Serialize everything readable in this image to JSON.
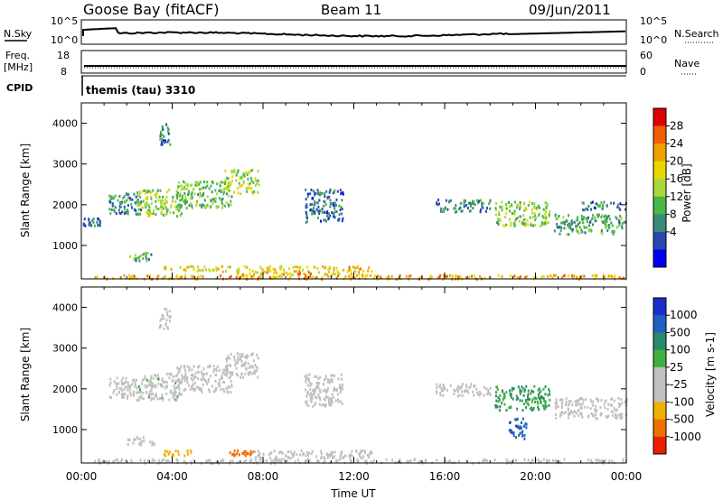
{
  "header": {
    "station": "Goose Bay (fitACF)",
    "beam": "Beam 11",
    "date": "09/Jun/2011"
  },
  "noise_panel": {
    "left_label": "N.Sky",
    "left_ticks": [
      "10^5",
      "10^0"
    ],
    "right_label": "N.Search",
    "right_ticks": [
      "10^5",
      "10^0"
    ]
  },
  "freq_panel": {
    "left_label_1": "Freq.",
    "left_label_2": "[MHz]",
    "left_ticks": [
      "18",
      "8"
    ],
    "right_label": "Nave",
    "right_ticks": [
      "60",
      "0"
    ]
  },
  "cpid_panel": {
    "label": "CPID",
    "value": "themis (tau) 3310"
  },
  "x_axis": {
    "label": "Time UT",
    "ticks": [
      "00:00",
      "04:00",
      "08:00",
      "12:00",
      "16:00",
      "20:00",
      "00:00"
    ]
  },
  "power_colorbar": {
    "label": "Power [dB]",
    "ticks": [
      "28",
      "24",
      "20",
      "16",
      "12",
      "8",
      "4"
    ],
    "colors": [
      "#e00000",
      "#f06000",
      "#f0a000",
      "#e8d800",
      "#a8d840",
      "#48b848",
      "#3a8a7a",
      "#2848b0",
      "#0000f0"
    ]
  },
  "velocity_colorbar": {
    "label": "Velocity [m s-1]",
    "ticks": [
      "1000",
      "500",
      "100",
      "25",
      "-25",
      "-100",
      "-500",
      "-1000"
    ],
    "colors": [
      "#1830c8",
      "#2060c0",
      "#2a8a6a",
      "#40b040",
      "#c0c0c0",
      "#c0c0c0",
      "#f0b000",
      "#f07000",
      "#e82000"
    ]
  },
  "chart_data": [
    {
      "type": "heatmap",
      "title": "Power",
      "ylabel": "Slant Range [km]",
      "yticks": [
        "1000",
        "2000",
        "3000",
        "4000"
      ],
      "xlim": [
        0,
        24
      ],
      "ylim": [
        180,
        4500
      ],
      "regions": [
        {
          "t": [
            1.2,
            2.6
          ],
          "r": [
            1800,
            2300
          ],
          "level": 8
        },
        {
          "t": [
            2.4,
            4.4
          ],
          "r": [
            1750,
            2400
          ],
          "level": 14
        },
        {
          "t": [
            4.2,
            6.6
          ],
          "r": [
            1950,
            2600
          ],
          "level": 12
        },
        {
          "t": [
            6.3,
            7.8
          ],
          "r": [
            2300,
            2900
          ],
          "level": 15
        },
        {
          "t": [
            3.4,
            3.9
          ],
          "r": [
            3500,
            4000
          ],
          "level": 6
        },
        {
          "t": [
            0.0,
            0.8
          ],
          "r": [
            1500,
            1700
          ],
          "level": 6
        },
        {
          "t": [
            2.0,
            3.2
          ],
          "r": [
            650,
            850
          ],
          "level": 10
        },
        {
          "t": [
            0.5,
            24.0
          ],
          "r": [
            200,
            300
          ],
          "level": 22
        },
        {
          "t": [
            3.6,
            6.6
          ],
          "r": [
            380,
            520
          ],
          "level": 18
        },
        {
          "t": [
            6.8,
            12.8
          ],
          "r": [
            300,
            520
          ],
          "level": 20
        },
        {
          "t": [
            9.8,
            11.5
          ],
          "r": [
            1600,
            2400
          ],
          "level": 6
        },
        {
          "t": [
            15.6,
            18.0
          ],
          "r": [
            1850,
            2150
          ],
          "level": 8
        },
        {
          "t": [
            18.2,
            20.6
          ],
          "r": [
            1500,
            2100
          ],
          "level": 14
        },
        {
          "t": [
            20.8,
            24.0
          ],
          "r": [
            1300,
            1800
          ],
          "level": 10
        },
        {
          "t": [
            22.0,
            24.0
          ],
          "r": [
            1900,
            2100
          ],
          "level": 6
        }
      ]
    },
    {
      "type": "heatmap",
      "title": "Velocity",
      "ylabel": "Slant Range [km]",
      "yticks": [
        "1000",
        "2000",
        "3000",
        "4000"
      ],
      "xlim": [
        0,
        24
      ],
      "ylim": [
        180,
        4500
      ],
      "regions": [
        {
          "t": [
            1.2,
            2.6
          ],
          "r": [
            1800,
            2300
          ],
          "v": 0
        },
        {
          "t": [
            2.4,
            4.4
          ],
          "r": [
            1750,
            2400
          ],
          "v": 10
        },
        {
          "t": [
            4.2,
            6.6
          ],
          "r": [
            1950,
            2600
          ],
          "v": 0
        },
        {
          "t": [
            6.3,
            7.8
          ],
          "r": [
            2300,
            2900
          ],
          "v": -30
        },
        {
          "t": [
            3.4,
            3.9
          ],
          "r": [
            3500,
            4000
          ],
          "v": 0
        },
        {
          "t": [
            2.0,
            3.2
          ],
          "r": [
            650,
            850
          ],
          "v": 0
        },
        {
          "t": [
            3.6,
            5.0
          ],
          "r": [
            380,
            520
          ],
          "v": -200
        },
        {
          "t": [
            6.5,
            7.6
          ],
          "r": [
            380,
            520
          ],
          "v": -400
        },
        {
          "t": [
            7.6,
            12.8
          ],
          "r": [
            300,
            520
          ],
          "v": 0
        },
        {
          "t": [
            0.5,
            24.0
          ],
          "r": [
            200,
            300
          ],
          "v": 0
        },
        {
          "t": [
            9.8,
            11.5
          ],
          "r": [
            1600,
            2400
          ],
          "v": 0
        },
        {
          "t": [
            15.6,
            18.0
          ],
          "r": [
            1850,
            2150
          ],
          "v": 0
        },
        {
          "t": [
            18.2,
            20.6
          ],
          "r": [
            1500,
            2100
          ],
          "v": 60
        },
        {
          "t": [
            18.8,
            19.6
          ],
          "r": [
            800,
            1300
          ],
          "v": 500
        },
        {
          "t": [
            20.8,
            24.0
          ],
          "r": [
            1300,
            1800
          ],
          "v": 0
        }
      ]
    }
  ]
}
